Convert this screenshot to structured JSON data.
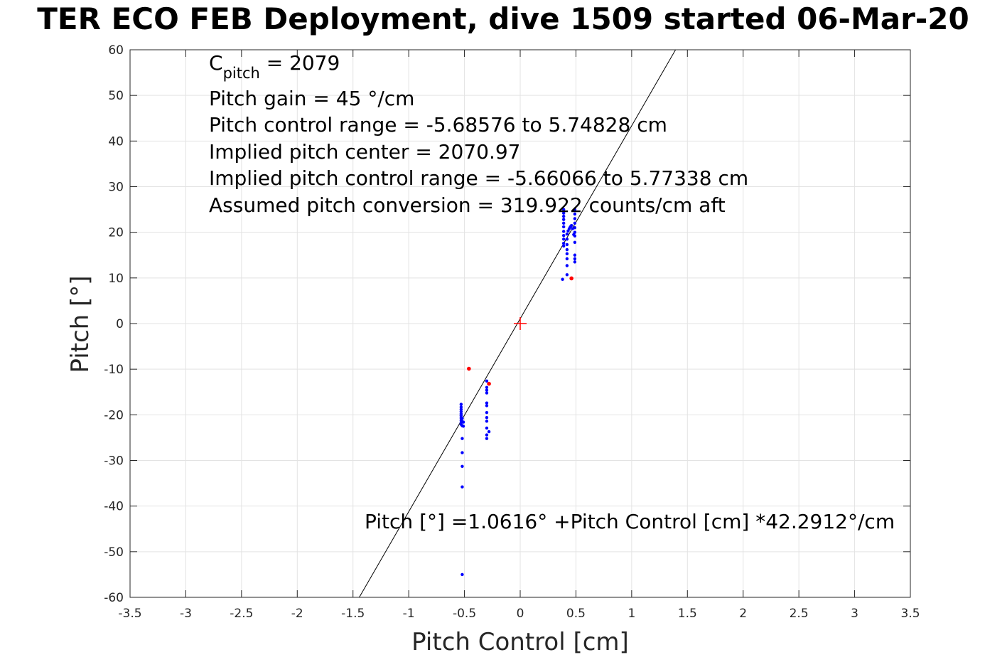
{
  "chart_data": {
    "type": "scatter",
    "title": "TER ECO FEB Deployment, dive 1509 started 06-Mar-20",
    "xlabel": "Pitch Control [cm]",
    "ylabel": "Pitch [°]",
    "xlim": [
      -3.5,
      3.5
    ],
    "ylim": [
      -60,
      60
    ],
    "xticks": [
      -3.5,
      -3,
      -2.5,
      -2,
      -1.5,
      -1,
      -0.5,
      0,
      0.5,
      1,
      1.5,
      2,
      2.5,
      3,
      3.5
    ],
    "yticks": [
      -60,
      -50,
      -40,
      -30,
      -20,
      -10,
      0,
      10,
      20,
      30,
      40,
      50,
      60
    ],
    "xtick_labels": [
      "-3.5",
      "-3",
      "-2.5",
      "-2",
      "-1.5",
      "-1",
      "-0.5",
      "0",
      "0.5",
      "1",
      "1.5",
      "2",
      "2.5",
      "3",
      "3.5"
    ],
    "ytick_labels": [
      "-60",
      "-50",
      "-40",
      "-30",
      "-20",
      "-10",
      "0",
      "10",
      "20",
      "30",
      "40",
      "50",
      "60"
    ],
    "grid": true,
    "annotations": {
      "c_pitch_symbol": "C",
      "c_pitch_subscript": "pitch",
      "c_pitch_value": " = 2079",
      "lines": [
        "Pitch gain = 45 °/cm",
        "Pitch control range = -5.68576 to 5.74828 cm",
        "Implied pitch center = 2070.97",
        "Implied pitch control range = -5.66066 to 5.77338 cm",
        "Assumed pitch conversion = 319.922 counts/cm aft"
      ],
      "fit_equation": "Pitch [°] =1.0616° +Pitch Control [cm] *42.2912°/cm"
    },
    "fit_line": {
      "intercept": 1.0616,
      "slope": 42.2912
    },
    "center_marker": {
      "x": 0,
      "y": 0,
      "color": "#ff0000"
    },
    "series": [
      {
        "color": "#0000ff",
        "points": [
          [
            -0.53,
            -17.7
          ],
          [
            -0.53,
            -18.3
          ],
          [
            -0.53,
            -18.8
          ],
          [
            -0.53,
            -19.3
          ],
          [
            -0.53,
            -19.8
          ],
          [
            -0.53,
            -20.2
          ],
          [
            -0.53,
            -20.7
          ],
          [
            -0.53,
            -21.2
          ],
          [
            -0.53,
            -21.7
          ],
          [
            -0.53,
            -22.1
          ],
          [
            -0.52,
            -20.8
          ],
          [
            -0.52,
            -21.5
          ],
          [
            -0.52,
            -22.4
          ],
          [
            -0.51,
            -21.6
          ],
          [
            -0.51,
            -22.5
          ],
          [
            -0.52,
            -25.2
          ],
          [
            -0.52,
            -28.3
          ],
          [
            -0.52,
            -31.3
          ],
          [
            -0.52,
            -35.8
          ],
          [
            -0.52,
            -55.0
          ],
          [
            -0.3,
            -12.6
          ],
          [
            -0.3,
            -14.0
          ],
          [
            -0.3,
            -14.6
          ],
          [
            -0.3,
            -15.2
          ],
          [
            -0.3,
            -17.4
          ],
          [
            -0.3,
            -18.0
          ],
          [
            -0.3,
            -19.5
          ],
          [
            -0.3,
            -20.6
          ],
          [
            -0.3,
            -21.4
          ],
          [
            -0.3,
            -22.9
          ],
          [
            -0.28,
            -23.7
          ],
          [
            -0.3,
            -24.4
          ],
          [
            -0.3,
            -25.2
          ],
          [
            0.39,
            25.0
          ],
          [
            0.39,
            24.2
          ],
          [
            0.39,
            23.5
          ],
          [
            0.39,
            22.8
          ],
          [
            0.39,
            22.0
          ],
          [
            0.39,
            21.2
          ],
          [
            0.39,
            20.2
          ],
          [
            0.39,
            19.3
          ],
          [
            0.39,
            18.5
          ],
          [
            0.39,
            17.6
          ],
          [
            0.39,
            17.0
          ],
          [
            0.38,
            9.7
          ],
          [
            0.42,
            19.6
          ],
          [
            0.42,
            18.5
          ],
          [
            0.42,
            17.3
          ],
          [
            0.42,
            16.2
          ],
          [
            0.42,
            15.3
          ],
          [
            0.42,
            14.2
          ],
          [
            0.42,
            12.7
          ],
          [
            0.42,
            10.7
          ],
          [
            0.43,
            20.3
          ],
          [
            0.44,
            20.8
          ],
          [
            0.45,
            21.2
          ],
          [
            0.46,
            21.5
          ],
          [
            0.47,
            20.8
          ],
          [
            0.48,
            19.5
          ],
          [
            0.49,
            25.0
          ],
          [
            0.49,
            24.0
          ],
          [
            0.49,
            23.0
          ],
          [
            0.49,
            22.0
          ],
          [
            0.49,
            21.0
          ],
          [
            0.49,
            20.0
          ],
          [
            0.49,
            19.2
          ],
          [
            0.49,
            17.8
          ],
          [
            0.49,
            15.0
          ],
          [
            0.49,
            14.2
          ],
          [
            0.49,
            13.5
          ]
        ]
      },
      {
        "color": "#ff0000",
        "points": [
          [
            -0.46,
            -9.9
          ],
          [
            -0.28,
            -13.2
          ],
          [
            0.46,
            9.9
          ]
        ]
      }
    ]
  }
}
